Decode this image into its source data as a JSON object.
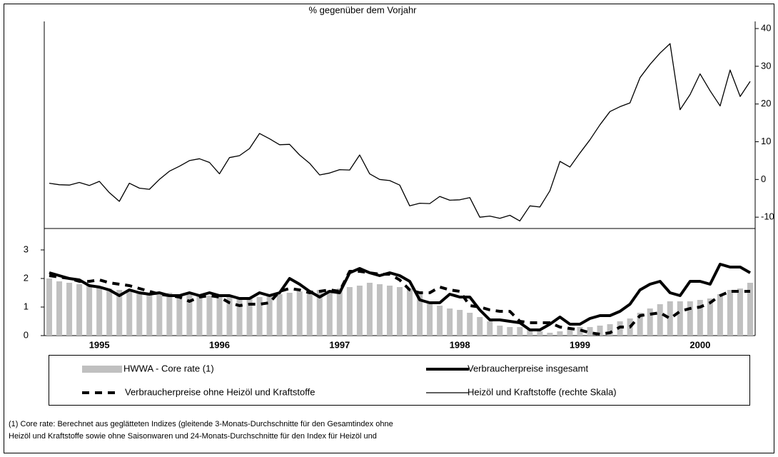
{
  "chart_data": {
    "type": "combo",
    "title": "% gegenüber dem Vorjahr",
    "categories": [
      null,
      null,
      null,
      null,
      null,
      "1995",
      null,
      null,
      null,
      null,
      null,
      null,
      null,
      null,
      null,
      null,
      null,
      "1996",
      null,
      null,
      null,
      null,
      null,
      null,
      null,
      null,
      null,
      null,
      null,
      "1997",
      null,
      null,
      null,
      null,
      null,
      null,
      null,
      null,
      null,
      null,
      null,
      "1998",
      null,
      null,
      null,
      null,
      null,
      null,
      null,
      null,
      null,
      null,
      null,
      "1999",
      null,
      null,
      null,
      null,
      null,
      null,
      null,
      null,
      null,
      null,
      null,
      "2000",
      null,
      null,
      null,
      null,
      null
    ],
    "ylim": [
      0,
      3.75
    ],
    "yticks": [
      0,
      1,
      2,
      3
    ],
    "y2lim": [
      -13,
      40
    ],
    "y2ticks": [
      -10,
      0,
      10,
      20,
      30,
      40
    ],
    "series": [
      {
        "name": "HWWA - Core rate (1)",
        "type": "bar",
        "color": "#c0c0c0",
        "values": [
          2.0,
          1.9,
          1.85,
          1.8,
          1.75,
          1.7,
          1.65,
          1.6,
          1.55,
          1.5,
          1.5,
          1.5,
          1.5,
          1.45,
          1.45,
          1.4,
          1.4,
          1.4,
          1.35,
          1.35,
          1.35,
          1.35,
          1.4,
          1.45,
          1.5,
          1.55,
          1.6,
          1.6,
          1.6,
          1.65,
          1.7,
          1.75,
          1.85,
          1.8,
          1.75,
          1.7,
          1.65,
          1.5,
          1.2,
          1.05,
          0.95,
          0.9,
          0.8,
          0.65,
          0.5,
          0.35,
          0.3,
          0.3,
          0.25,
          0.15,
          0.1,
          0.15,
          0.25,
          0.3,
          0.3,
          0.35,
          0.4,
          0.5,
          0.6,
          0.8,
          0.95,
          1.1,
          1.2,
          1.2,
          1.2,
          1.25,
          1.3,
          1.45,
          1.6,
          1.65,
          1.85
        ]
      },
      {
        "name": "Verbraucherpreise insgesamt",
        "type": "line",
        "color": "#000000",
        "values": [
          2.2,
          2.1,
          2.0,
          1.95,
          1.75,
          1.7,
          1.6,
          1.4,
          1.6,
          1.5,
          1.45,
          1.5,
          1.4,
          1.4,
          1.5,
          1.4,
          1.5,
          1.4,
          1.4,
          1.3,
          1.3,
          1.5,
          1.4,
          1.5,
          2.0,
          1.8,
          1.55,
          1.35,
          1.55,
          1.5,
          2.2,
          2.35,
          2.2,
          2.1,
          2.2,
          2.1,
          1.9,
          1.25,
          1.15,
          1.15,
          1.45,
          1.35,
          1.35,
          0.9,
          0.55,
          0.55,
          0.5,
          0.45,
          0.2,
          0.2,
          0.4,
          0.65,
          0.4,
          0.4,
          0.6,
          0.7,
          0.7,
          0.85,
          1.1,
          1.6,
          1.8,
          1.9,
          1.5,
          1.4,
          1.9,
          1.9,
          1.8,
          2.5,
          2.4,
          2.4,
          2.2
        ]
      },
      {
        "name": "Verbraucherpreise ohne Heizöl und Kraftstoffe",
        "type": "dashed",
        "color": "#000000",
        "values": [
          2.1,
          2.05,
          2.0,
          1.9,
          1.9,
          1.95,
          1.85,
          1.8,
          1.75,
          1.65,
          1.55,
          1.45,
          1.4,
          1.35,
          1.2,
          1.35,
          1.4,
          1.35,
          1.15,
          1.05,
          1.1,
          1.1,
          1.15,
          1.55,
          1.65,
          1.6,
          1.5,
          1.55,
          1.6,
          1.55,
          2.25,
          2.25,
          2.2,
          2.15,
          2.15,
          1.95,
          1.6,
          1.5,
          1.5,
          1.7,
          1.6,
          1.55,
          1.05,
          1.0,
          0.9,
          0.85,
          0.85,
          0.5,
          0.45,
          0.45,
          0.45,
          0.3,
          0.25,
          0.2,
          0.1,
          0.05,
          0.1,
          0.3,
          0.3,
          0.7,
          0.75,
          0.8,
          0.6,
          0.85,
          0.95,
          1.0,
          1.15,
          1.4,
          1.55,
          1.55,
          1.55
        ]
      },
      {
        "name": "Heizöl und Kraftstoffe (rechte Skala)",
        "type": "thin",
        "color": "#000000",
        "axis": "y2",
        "values": [
          -1,
          -1.4,
          -1.5,
          -0.8,
          -1.6,
          -0.5,
          -3.5,
          -5.8,
          -1,
          -2.3,
          -2.6,
          0,
          2.2,
          3.5,
          5,
          5.5,
          4.5,
          1.5,
          5.8,
          6.3,
          8.2,
          12.2,
          10.8,
          9.2,
          9.3,
          6.5,
          4.3,
          1.2,
          1.7,
          2.6,
          2.5,
          6.5,
          1.5,
          0,
          -0.3,
          -1.5,
          -7,
          -6.3,
          -6.4,
          -4.5,
          -5.5,
          -5.4,
          -4.8,
          -10,
          -9.7,
          -10.3,
          -9.5,
          -11,
          -7,
          -7.3,
          -3,
          4.8,
          3.3,
          7,
          10.5,
          14.5,
          18,
          19.3,
          20.3,
          27,
          30.5,
          33.5,
          36,
          18.5,
          22.5,
          28,
          23.5,
          19.5,
          29,
          22,
          26
        ]
      }
    ],
    "footnote": [
      "(1) Core rate: Berechnet aus geglätteten Indizes (gleitende 3-Monats-Durchschnitte für den Gesamtindex ohne",
      "Heizöl und Kraftstoffe sowie ohne Saisonwaren und 24-Monats-Durchschnitte für den Index für Heizöl und"
    ]
  }
}
